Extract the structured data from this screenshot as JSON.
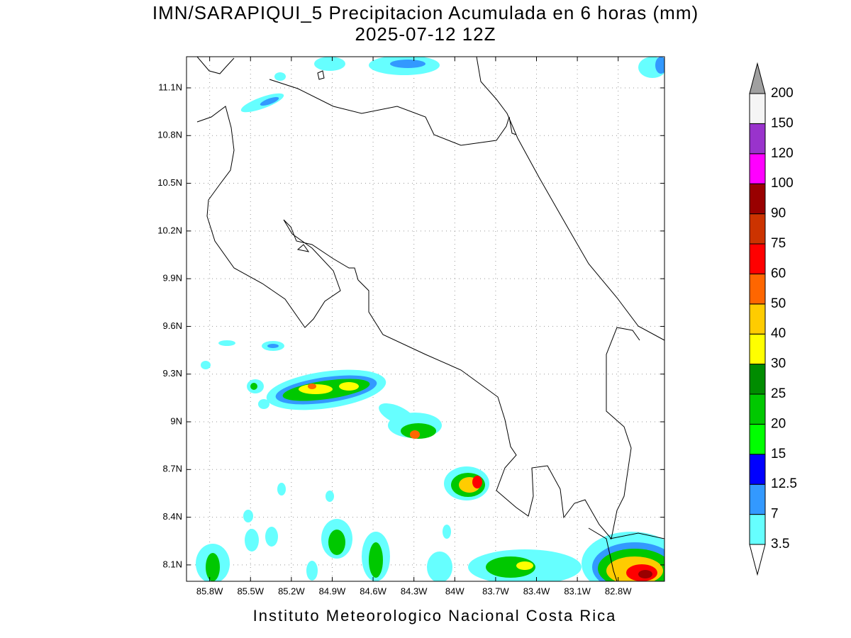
{
  "title": "IMN/SARAPIQUI_5 Precipitacion Acumulada en 6 horas (mm)",
  "subtitle": "2025-07-12 12Z",
  "map": {
    "xlim": [
      -85.97,
      -82.46
    ],
    "ylim": [
      7.997,
      11.296
    ],
    "grid": true,
    "xticks": [
      {
        "value": -85.8,
        "label": "85.8W"
      },
      {
        "value": -85.5,
        "label": "85.5W"
      },
      {
        "value": -85.2,
        "label": "85.2W"
      },
      {
        "value": -84.9,
        "label": "84.9W"
      },
      {
        "value": -84.6,
        "label": "84.6W"
      },
      {
        "value": -84.3,
        "label": "84.3W"
      },
      {
        "value": -84,
        "label": "84W"
      },
      {
        "value": -83.7,
        "label": "83.7W"
      },
      {
        "value": -83.4,
        "label": "83.4W"
      },
      {
        "value": -83.1,
        "label": "83.1W"
      },
      {
        "value": -82.8,
        "label": "82.8W"
      }
    ],
    "yticks": [
      {
        "value": 8.1,
        "label": "8.1N"
      },
      {
        "value": 8.4,
        "label": "8.4N"
      },
      {
        "value": 8.7,
        "label": "8.7N"
      },
      {
        "value": 9,
        "label": "9N"
      },
      {
        "value": 9.3,
        "label": "9.3N"
      },
      {
        "value": 9.6,
        "label": "9.6N"
      },
      {
        "value": 9.9,
        "label": "9.9N"
      },
      {
        "value": 10.2,
        "label": "10.2N"
      },
      {
        "value": 10.5,
        "label": "10.5N"
      },
      {
        "value": 10.8,
        "label": "10.8N"
      },
      {
        "value": 11.1,
        "label": "11.1N"
      }
    ]
  },
  "colorbar": {
    "levels": [
      3.5,
      7,
      12.5,
      15,
      20,
      25,
      30,
      40,
      50,
      60,
      75,
      90,
      100,
      120,
      150,
      200
    ],
    "colors": [
      "#66ffff",
      "#3399ff",
      "#0000ff",
      "#00ff00",
      "#00c800",
      "#008c00",
      "#ffff00",
      "#ffcc00",
      "#ff6600",
      "#ff0000",
      "#cc3300",
      "#990000",
      "#ff00ff",
      "#9933cc",
      "#f5f5f5"
    ],
    "under_color": "#ffffff",
    "over_color": "#a0a0a0"
  },
  "footer": "Instituto Meteorologico Nacional Costa Rica"
}
